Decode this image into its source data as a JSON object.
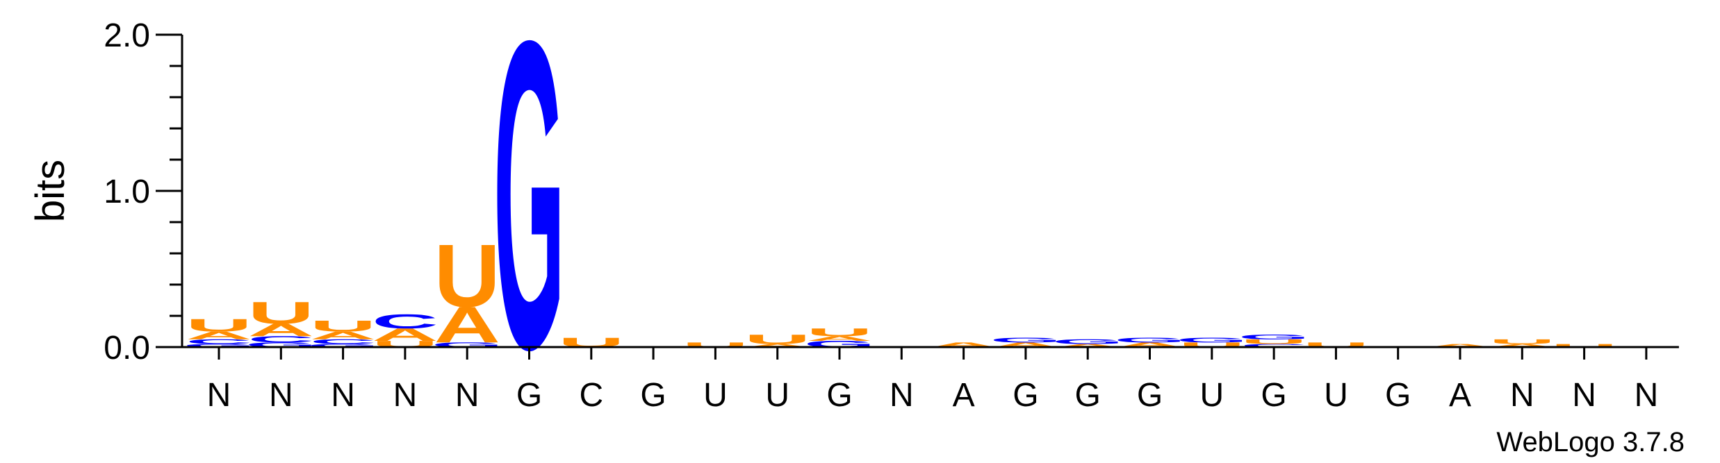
{
  "chart_data": {
    "type": "sequence-logo",
    "ylabel": "bits",
    "ylim": [
      0,
      2.0
    ],
    "yticks": [
      {
        "value": 0.0,
        "label": "0.0"
      },
      {
        "value": 1.0,
        "label": "1.0"
      },
      {
        "value": 2.0,
        "label": "2.0"
      }
    ],
    "minor_tick_step": 0.2,
    "credit": "WebLogo 3.7.8",
    "colors": {
      "A": "#ff8c00",
      "U": "#ff8c00",
      "G": "#0000ff",
      "C": "#0000ff"
    },
    "positions": [
      {
        "label": "N",
        "stack": [
          {
            "letter": "G",
            "bits": 0.02
          },
          {
            "letter": "C",
            "bits": 0.03
          },
          {
            "letter": "A",
            "bits": 0.05
          },
          {
            "letter": "U",
            "bits": 0.08
          }
        ]
      },
      {
        "label": "N",
        "stack": [
          {
            "letter": "G",
            "bits": 0.03
          },
          {
            "letter": "C",
            "bits": 0.04
          },
          {
            "letter": "A",
            "bits": 0.08
          },
          {
            "letter": "U",
            "bits": 0.14
          }
        ]
      },
      {
        "label": "N",
        "stack": [
          {
            "letter": "G",
            "bits": 0.02
          },
          {
            "letter": "C",
            "bits": 0.03
          },
          {
            "letter": "A",
            "bits": 0.05
          },
          {
            "letter": "U",
            "bits": 0.07
          }
        ]
      },
      {
        "label": "N",
        "stack": [
          {
            "letter": "U",
            "bits": 0.04
          },
          {
            "letter": "A",
            "bits": 0.08
          },
          {
            "letter": "C",
            "bits": 0.09
          }
        ]
      },
      {
        "label": "N",
        "stack": [
          {
            "letter": "G",
            "bits": 0.03
          },
          {
            "letter": "A",
            "bits": 0.23
          },
          {
            "letter": "U",
            "bits": 0.4
          }
        ]
      },
      {
        "label": "G",
        "stack": [
          {
            "letter": "G",
            "bits": 1.97
          }
        ]
      },
      {
        "label": "C",
        "stack": [
          {
            "letter": "U",
            "bits": 0.06
          }
        ]
      },
      {
        "label": "G",
        "stack": []
      },
      {
        "label": "U",
        "stack": [
          {
            "letter": "U",
            "bits": 0.03
          }
        ]
      },
      {
        "label": "U",
        "stack": [
          {
            "letter": "A",
            "bits": 0.02
          },
          {
            "letter": "U",
            "bits": 0.06
          }
        ]
      },
      {
        "label": "G",
        "stack": [
          {
            "letter": "G",
            "bits": 0.04
          },
          {
            "letter": "A",
            "bits": 0.03
          },
          {
            "letter": "U",
            "bits": 0.05
          }
        ]
      },
      {
        "label": "N",
        "stack": []
      },
      {
        "label": "A",
        "stack": [
          {
            "letter": "A",
            "bits": 0.03
          }
        ]
      },
      {
        "label": "G",
        "stack": [
          {
            "letter": "A",
            "bits": 0.03
          },
          {
            "letter": "G",
            "bits": 0.03
          }
        ]
      },
      {
        "label": "G",
        "stack": [
          {
            "letter": "A",
            "bits": 0.02
          },
          {
            "letter": "G",
            "bits": 0.03
          }
        ]
      },
      {
        "label": "G",
        "stack": [
          {
            "letter": "A",
            "bits": 0.03
          },
          {
            "letter": "G",
            "bits": 0.03
          }
        ]
      },
      {
        "label": "U",
        "stack": [
          {
            "letter": "U",
            "bits": 0.03
          },
          {
            "letter": "G",
            "bits": 0.03
          }
        ]
      },
      {
        "label": "G",
        "stack": [
          {
            "letter": "C",
            "bits": 0.02
          },
          {
            "letter": "U",
            "bits": 0.03
          },
          {
            "letter": "G",
            "bits": 0.03
          }
        ]
      },
      {
        "label": "U",
        "stack": [
          {
            "letter": "U",
            "bits": 0.03
          }
        ]
      },
      {
        "label": "G",
        "stack": []
      },
      {
        "label": "A",
        "stack": [
          {
            "letter": "A",
            "bits": 0.02
          }
        ]
      },
      {
        "label": "N",
        "stack": [
          {
            "letter": "A",
            "bits": 0.02
          },
          {
            "letter": "U",
            "bits": 0.03
          }
        ]
      },
      {
        "label": "N",
        "stack": [
          {
            "letter": "U",
            "bits": 0.02
          }
        ]
      },
      {
        "label": "N",
        "stack": []
      }
    ]
  }
}
